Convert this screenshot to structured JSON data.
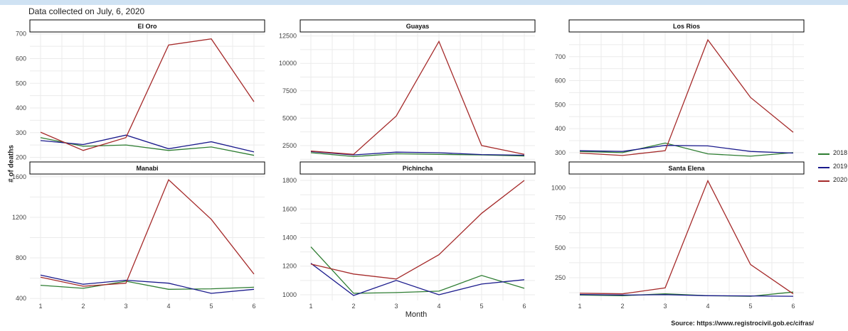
{
  "caption": "Data collected on July, 6, 2020",
  "source": "Source: https://www.registrocivil.gob.ec/cifras/",
  "colors": {
    "2018": "#2e7d32",
    "2019": "#1a1a8c",
    "2020": "#a52a2a"
  },
  "chart_data": {
    "type": "line",
    "xlabel": "Month",
    "ylabel": "# of deaths",
    "grid": true,
    "legend_position": "right",
    "legend": [
      "2018",
      "2019",
      "2020"
    ],
    "x": [
      1,
      2,
      3,
      4,
      5,
      6
    ],
    "panels": [
      {
        "title": "El Oro",
        "ylim": [
          190,
          705
        ],
        "yticks": [
          200,
          300,
          400,
          500,
          600,
          700
        ],
        "series": [
          {
            "name": "2018",
            "values": [
              280,
              245,
              250,
              228,
              242,
              208
            ]
          },
          {
            "name": "2019",
            "values": [
              268,
              252,
              290,
              235,
              263,
              222
            ]
          },
          {
            "name": "2020",
            "values": [
              302,
              228,
              280,
              655,
              680,
              425
            ]
          }
        ]
      },
      {
        "title": "Guayas",
        "ylim": [
          1200,
          12800
        ],
        "yticks": [
          2500,
          5000,
          7500,
          10000,
          12500
        ],
        "series": [
          {
            "name": "2018",
            "values": [
              1850,
              1500,
              1750,
              1700,
              1650,
              1550
            ]
          },
          {
            "name": "2019",
            "values": [
              1950,
              1650,
              1900,
              1850,
              1680,
              1620
            ]
          },
          {
            "name": "2020",
            "values": [
              2000,
              1700,
              5200,
              12000,
              2500,
              1700
            ]
          }
        ]
      },
      {
        "title": "Los Rios",
        "ylim": [
          270,
          800
        ],
        "yticks": [
          300,
          400,
          500,
          600,
          700
        ],
        "series": [
          {
            "name": "2018",
            "values": [
              305,
              300,
              340,
              295,
              285,
              300
            ]
          },
          {
            "name": "2019",
            "values": [
              308,
              305,
              330,
              328,
              305,
              298
            ]
          },
          {
            "name": "2020",
            "values": [
              298,
              288,
              308,
              770,
              530,
              385
            ]
          }
        ]
      },
      {
        "title": "Manabi",
        "ylim": [
          380,
          1620
        ],
        "yticks": [
          400,
          800,
          1200,
          1600
        ],
        "series": [
          {
            "name": "2018",
            "values": [
              530,
              500,
              570,
              490,
              495,
              510
            ]
          },
          {
            "name": "2019",
            "values": [
              630,
              540,
              580,
              550,
              450,
              490
            ]
          },
          {
            "name": "2020",
            "values": [
              610,
              520,
              550,
              1570,
              1180,
              640
            ]
          }
        ]
      },
      {
        "title": "Pichincha",
        "ylim": [
          960,
          1840
        ],
        "yticks": [
          1000,
          1200,
          1400,
          1600,
          1800
        ],
        "series": [
          {
            "name": "2018",
            "values": [
              1335,
              1010,
              1015,
              1025,
              1135,
              1045
            ]
          },
          {
            "name": "2019",
            "values": [
              1220,
              995,
              1100,
              1000,
              1075,
              1105
            ]
          },
          {
            "name": "2020",
            "values": [
              1215,
              1145,
              1110,
              1280,
              1570,
              1800
            ]
          }
        ]
      },
      {
        "title": "Santa Elena",
        "ylim": [
          60,
          1110
        ],
        "yticks": [
          250,
          500,
          750,
          1000
        ],
        "series": [
          {
            "name": "2018",
            "values": [
              105,
              100,
              115,
              100,
              95,
              130
            ]
          },
          {
            "name": "2019",
            "values": [
              110,
              105,
              108,
              100,
              98,
              95
            ]
          },
          {
            "name": "2020",
            "values": [
              120,
              115,
              165,
              1060,
              360,
              115
            ]
          }
        ]
      }
    ]
  }
}
